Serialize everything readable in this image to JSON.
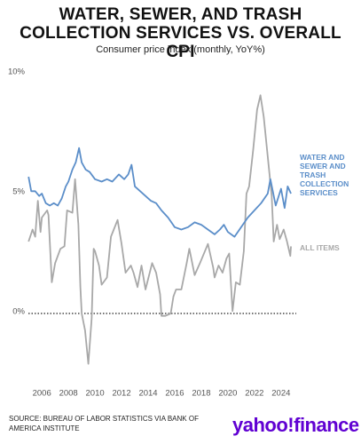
{
  "chart_data": {
    "type": "line",
    "title": "WATER, SEWER, AND TRASH COLLECTION SERVICES VS. OVERALL CPI",
    "subtitle": "Consumer price index (monthly, YoY%)",
    "source": "SOURCE: BUREAU OF LABOR STATISTICS VIA BANK OF AMERICA INSTITUTE",
    "logo": "yahoo!finance",
    "xlim": [
      2005,
      2025.3
    ],
    "xticks": [
      2006,
      2008,
      2010,
      2012,
      2014,
      2016,
      2018,
      2020,
      2022,
      2024
    ],
    "ylim": [
      -2.2,
      10
    ],
    "yticks": [
      {
        "value": 0,
        "label": "0%"
      },
      {
        "value": 5,
        "label": "5%"
      },
      {
        "value": 10,
        "label": "10%"
      }
    ],
    "zero_line": true,
    "series": [
      {
        "name": "WATER AND SEWER AND TRASH COLLECTION SERVICES",
        "color": "#5b8ec9",
        "x": [
          2005.0,
          2005.2,
          2005.5,
          2005.8,
          2006.0,
          2006.3,
          2006.6,
          2006.9,
          2007.2,
          2007.5,
          2007.8,
          2008.0,
          2008.3,
          2008.55,
          2008.8,
          2009.0,
          2009.3,
          2009.6,
          2010.0,
          2010.5,
          2010.9,
          2011.3,
          2011.8,
          2012.2,
          2012.5,
          2012.75,
          2013.0,
          2013.4,
          2013.8,
          2014.2,
          2014.6,
          2015.0,
          2015.5,
          2016.0,
          2016.5,
          2017.0,
          2017.5,
          2018.0,
          2018.5,
          2019.0,
          2019.4,
          2019.7,
          2020.0,
          2020.5,
          2021.0,
          2021.5,
          2022.0,
          2022.5,
          2023.0,
          2023.2,
          2023.6,
          2024.0,
          2024.27,
          2024.5,
          2024.75
        ],
        "values": [
          5.7,
          5.1,
          5.1,
          4.9,
          5.0,
          4.6,
          4.5,
          4.6,
          4.5,
          4.8,
          5.3,
          5.5,
          6.0,
          6.3,
          6.9,
          6.3,
          6.0,
          5.9,
          5.6,
          5.5,
          5.6,
          5.5,
          5.8,
          5.6,
          5.8,
          6.2,
          5.3,
          5.1,
          4.9,
          4.7,
          4.6,
          4.3,
          4.0,
          3.6,
          3.5,
          3.6,
          3.8,
          3.7,
          3.5,
          3.3,
          3.5,
          3.7,
          3.4,
          3.2,
          3.6,
          4.0,
          4.3,
          4.6,
          5.0,
          5.6,
          4.5,
          5.2,
          4.4,
          5.3,
          5.0
        ]
      },
      {
        "name": "ALL ITEMS",
        "color": "#a8a8a8",
        "x": [
          2005.0,
          2005.3,
          2005.5,
          2005.7,
          2005.9,
          2006.0,
          2006.4,
          2006.5,
          2006.75,
          2007.0,
          2007.4,
          2007.7,
          2007.9,
          2008.3,
          2008.5,
          2008.75,
          2008.9,
          2009.0,
          2009.25,
          2009.5,
          2009.75,
          2009.9,
          2010.0,
          2010.3,
          2010.5,
          2010.9,
          2011.2,
          2011.7,
          2012.0,
          2012.3,
          2012.7,
          2012.9,
          2013.2,
          2013.5,
          2013.8,
          2014.3,
          2014.6,
          2014.9,
          2015.0,
          2015.3,
          2015.7,
          2015.9,
          2016.1,
          2016.5,
          2016.9,
          2017.1,
          2017.5,
          2017.9,
          2018.5,
          2018.9,
          2019.0,
          2019.3,
          2019.6,
          2019.9,
          2020.1,
          2020.35,
          2020.6,
          2020.9,
          2021.2,
          2021.4,
          2021.6,
          2021.9,
          2022.2,
          2022.45,
          2022.7,
          2022.9,
          2023.1,
          2023.3,
          2023.45,
          2023.7,
          2023.9,
          2024.2,
          2024.45,
          2024.7,
          2024.75
        ],
        "values": [
          3.0,
          3.5,
          3.2,
          4.7,
          3.4,
          4.0,
          4.3,
          4.1,
          1.3,
          2.1,
          2.7,
          2.8,
          4.3,
          4.2,
          5.6,
          3.7,
          1.1,
          0.0,
          -0.7,
          -2.1,
          -0.2,
          2.7,
          2.6,
          2.0,
          1.2,
          1.5,
          3.2,
          3.9,
          2.9,
          1.7,
          2.0,
          1.7,
          1.1,
          2.0,
          1.0,
          2.1,
          1.7,
          0.8,
          -0.1,
          -0.1,
          0.0,
          0.7,
          1.0,
          1.0,
          2.1,
          2.7,
          1.6,
          2.1,
          2.9,
          1.9,
          1.5,
          2.0,
          1.7,
          2.3,
          2.5,
          0.1,
          1.3,
          1.2,
          2.6,
          5.0,
          5.3,
          6.8,
          8.5,
          9.1,
          8.2,
          7.1,
          6.0,
          4.9,
          3.0,
          3.7,
          3.1,
          3.5,
          3.0,
          2.4,
          2.8
        ]
      }
    ]
  }
}
